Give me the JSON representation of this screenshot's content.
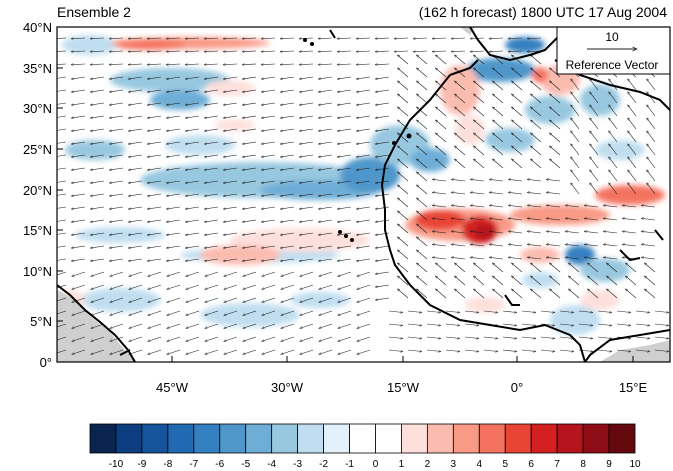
{
  "header": {
    "left_title": "Ensemble 2",
    "right_title": "(162 h forecast) 1800 UTC 17 Aug 2004"
  },
  "map": {
    "lat_labels": [
      "40°N",
      "35°N",
      "30°N",
      "25°N",
      "20°N",
      "15°N",
      "10°N",
      "5°N",
      "0°"
    ],
    "lon_labels": [
      "45°W",
      "30°W",
      "15°W",
      "0°",
      "15°E"
    ],
    "reference_vector": {
      "value": "10",
      "label": "Reference Vector"
    },
    "colors": {
      "land_outline": "#000000",
      "missing_land": "#cfcfcf"
    }
  },
  "colorbar": {
    "labels": [
      "-10",
      "-9",
      "-8",
      "-7",
      "-6",
      "-5",
      "-4",
      "-3",
      "-2",
      "-1",
      "0",
      "1",
      "2",
      "3",
      "4",
      "5",
      "6",
      "7",
      "8",
      "9",
      "10"
    ],
    "colors": [
      "#08244f",
      "#0b3d7f",
      "#16549c",
      "#2169b0",
      "#3580c0",
      "#4f97cb",
      "#6eaed6",
      "#98c8e0",
      "#c0def0",
      "#e2f1fb",
      "#ffffff",
      "#ffffff",
      "#fde0dc",
      "#fbbcb0",
      "#f89a86",
      "#f47360",
      "#e94535",
      "#d42020",
      "#b5141d",
      "#8f0d17",
      "#640a0e"
    ]
  }
}
